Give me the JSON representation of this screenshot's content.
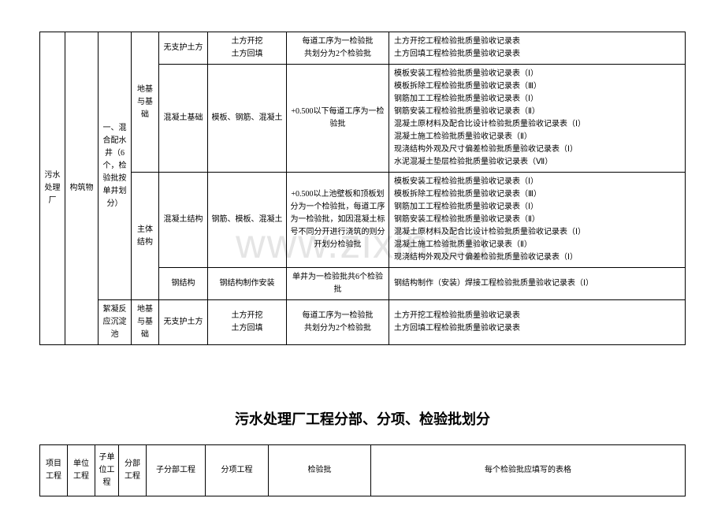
{
  "watermark": "www.zixin.co",
  "table1": {
    "rows": {
      "project": "污水处理厂",
      "unit": "构筑物",
      "subunit1": "一、混合配水井（6个，检验批按单井划分）",
      "subunit2": "絮凝反应沉淀池",
      "section1": "地基与基础",
      "section2": "主体结构",
      "section3": "地基与基础",
      "subsection1": "无支护土方",
      "subsection2": "混凝土基础",
      "subsection3": "混凝土结构",
      "subsection4": "钢结构",
      "subsection5": "无支护土方",
      "item1": "土方开挖\n土方回填",
      "item2": "模板、钢筋、混凝土",
      "item3": "钢筋、模板、混凝土",
      "item4": "钢结构制作安装",
      "item5": "土方开挖\n土方回填",
      "batch1": "每道工序为一检验批\n共划分为2个检验批",
      "batch2": "+0.500以下每道工序为一检验批",
      "batch3": "+0.500以上池壁板和顶板划分为一个检验批，每道工序为一检验批，如因混凝土标号不同分开进行浇筑的则分开划分检验批",
      "batch4": "单井为一检验批共6个检验批",
      "batch5": "每道工序为一检验批\n共划分为2个检验批",
      "forms1": "土方开挖工程检验批质量验收记录表\n土方回填工程检验批质量验收记录表",
      "forms2": "模板安装工程检验批质量验收记录表（Ⅰ）\n模板拆除工程检验批质量验收记录表（Ⅲ）\n钢筋加工工程检验批质量验收记录表（Ⅰ）\n钢筋安装工程检验批质量验收记录表（Ⅱ）\n混凝土原材料及配合比设计检验批质量验收记录表（Ⅰ）\n混凝土施工检验批质量验收记录表（Ⅱ）\n现浇结构外观及尺寸偏差检验批质量验收记录表（Ⅰ）\n水泥混凝土垫层检验批质量验收记录表（Ⅶ）",
      "forms3": "模板安装工程检验批质量验收记录表（Ⅰ）\n模板拆除工程检验批质量验收记录表（Ⅲ）\n钢筋加工工程检验批质量验收记录表（Ⅰ）\n钢筋安装工程检验批质量验收记录表（Ⅱ）\n混凝土原材料及配合比设计检验批质量验收记录表（Ⅰ）\n混凝土施工检验批质量验收记录表（Ⅱ）\n现浇结构外观及尺寸偏差检验批质量验收记录表（Ⅰ）",
      "forms4": "钢结构制作（安装）焊接工程检验批质量验收记录表（Ⅰ）",
      "forms5": "土方开挖工程检验批质量验收记录表\n土方回填工程检验批质量验收记录表"
    }
  },
  "title": "污水处理厂工程分部、分项、检验批划分",
  "table2": {
    "headers": {
      "h1": "项目工程",
      "h2": "单位工程",
      "h3": "子单位工程",
      "h4": "分部工程",
      "h5": "子分部工程",
      "h6": "分项工程",
      "h7": "检验批",
      "h8": "每个检验批应填写的表格"
    }
  }
}
